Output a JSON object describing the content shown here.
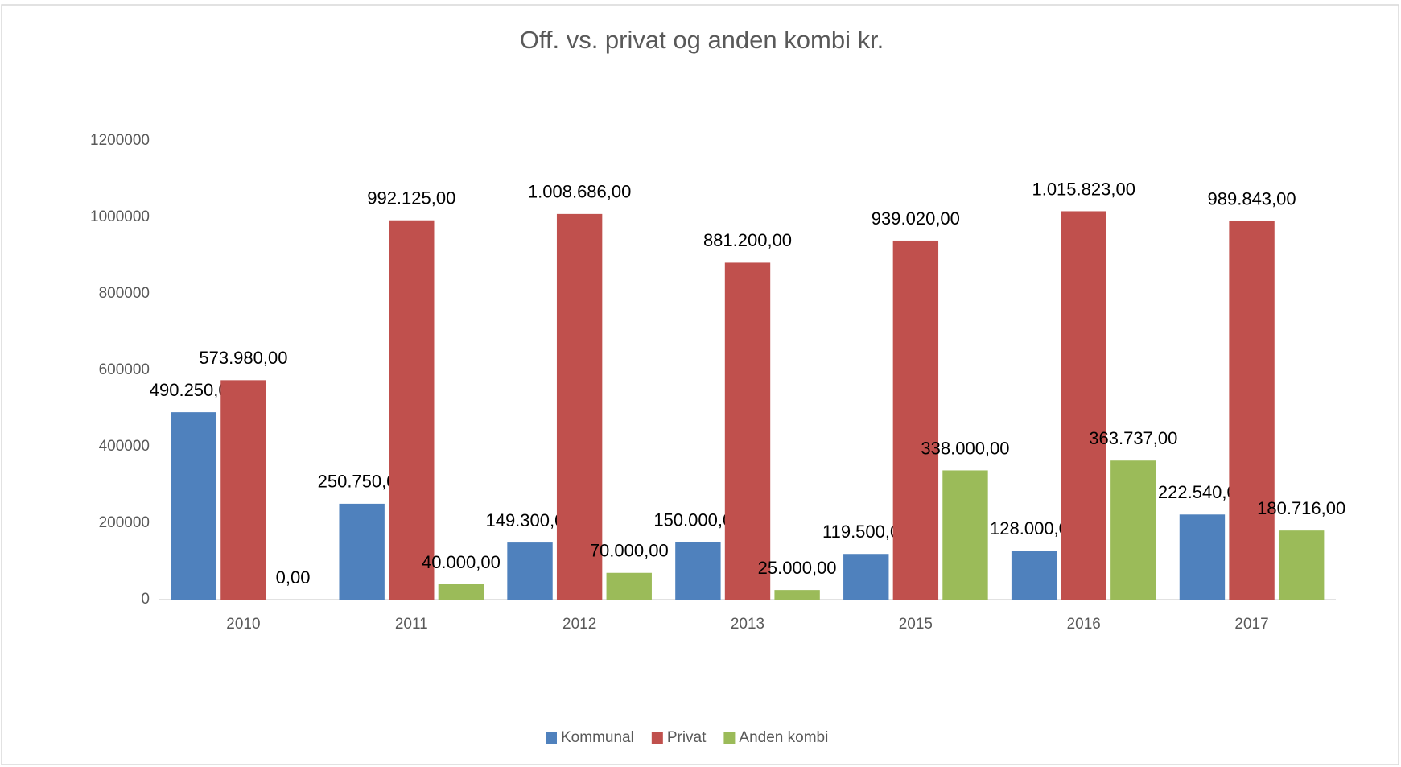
{
  "chart_data": {
    "type": "bar",
    "title": "Off. vs. privat og anden kombi kr.",
    "categories": [
      "2010",
      "2011",
      "2012",
      "2013",
      "2015",
      "2016",
      "2017"
    ],
    "series": [
      {
        "name": "Kommunal",
        "color": "#4f81bd",
        "values": [
          490250,
          250750,
          149300,
          150000,
          119500,
          128000,
          222540
        ],
        "value_labels": [
          "490.250,00",
          "250.750,00",
          "149.300,00",
          "150.000,00",
          "119.500,00",
          "128.000,00",
          "222.540,00"
        ]
      },
      {
        "name": "Privat",
        "color": "#c0504d",
        "values": [
          573980,
          992125,
          1008686,
          881200,
          939020,
          1015823,
          989843
        ],
        "value_labels": [
          "573.980,00",
          "992.125,00",
          "1.008.686,00",
          "881.200,00",
          "939.020,00",
          "1.015.823,00",
          "989.843,00"
        ]
      },
      {
        "name": "Anden kombi",
        "color": "#9bbb59",
        "values": [
          0,
          40000,
          70000,
          25000,
          338000,
          363737,
          180716
        ],
        "value_labels": [
          "0,00",
          "40.000,00",
          "70.000,00",
          "25.000,00",
          "338.000,00",
          "363.737,00",
          "180.716,00"
        ]
      }
    ],
    "ylim": [
      0,
      1200000
    ],
    "yticks": [
      0,
      200000,
      400000,
      600000,
      800000,
      1000000,
      1200000
    ],
    "grid": false,
    "legend": "bottom"
  }
}
